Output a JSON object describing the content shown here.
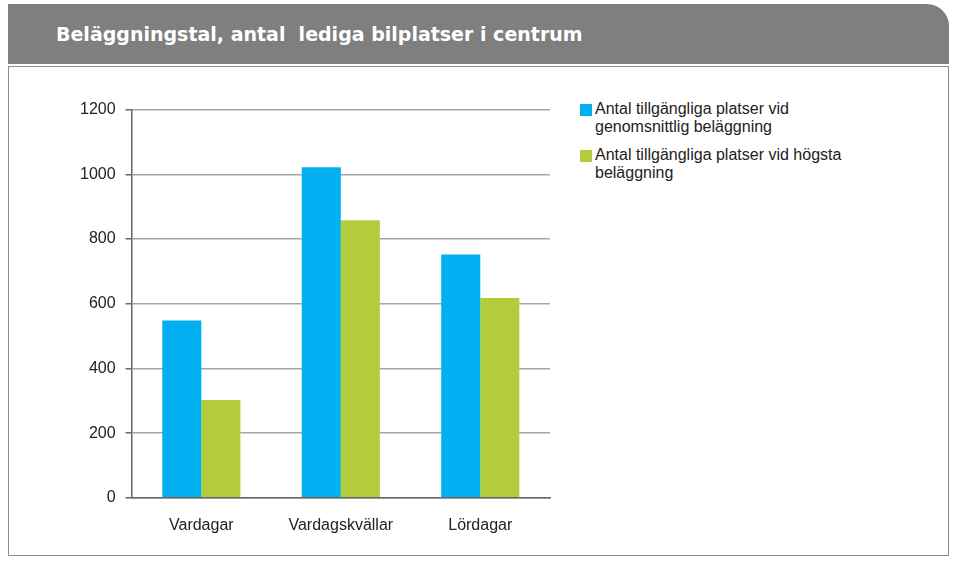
{
  "chart_data": {
    "type": "bar",
    "title": "Beläggningstal, antal  lediga bilplatser i centrum",
    "categories": [
      "Vardagar",
      "Vardagskvällar",
      "Lördagar"
    ],
    "series": [
      {
        "name": "Antal tillgängliga platser vid genomsnittlig beläggning",
        "color": "#00b0f0",
        "values": [
          548,
          1022,
          752
        ]
      },
      {
        "name": "Antal tillgängliga platser vid högsta beläggning",
        "color": "#b3cc3c",
        "values": [
          302,
          858,
          618
        ]
      }
    ],
    "ylim": [
      0,
      1200
    ],
    "yticks": [
      0,
      200,
      400,
      600,
      800,
      1000,
      1200
    ],
    "grid": true,
    "legend": "right"
  }
}
